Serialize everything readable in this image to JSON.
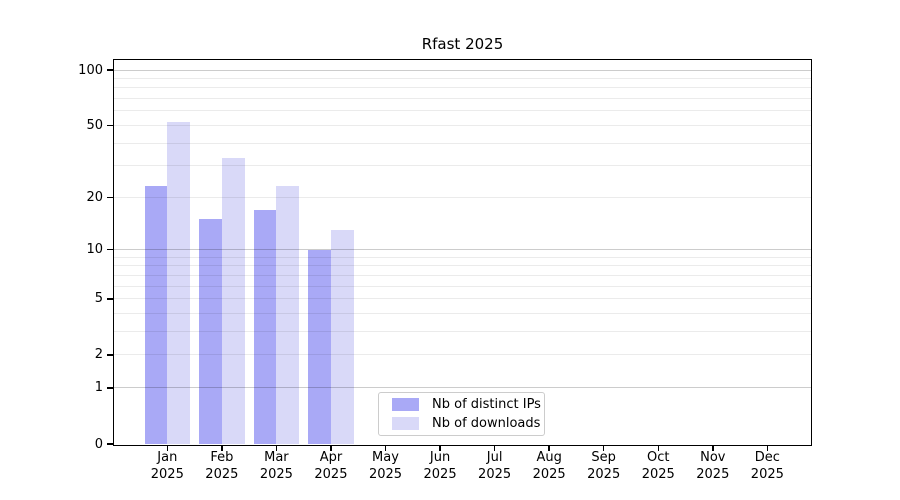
{
  "chart_data": {
    "type": "bar",
    "title": "Rfast 2025",
    "months": [
      "Jan",
      "Feb",
      "Mar",
      "Apr",
      "May",
      "Jun",
      "Jul",
      "Aug",
      "Sep",
      "Oct",
      "Nov",
      "Dec"
    ],
    "year_label": "2025",
    "series": [
      {
        "name": "Nb of distinct IPs",
        "color": "#a9a9f6",
        "values": [
          23,
          15,
          17,
          10,
          0,
          0,
          0,
          0,
          0,
          0,
          0,
          0
        ]
      },
      {
        "name": "Nb of downloads",
        "color": "#d9d9f8",
        "values": [
          52,
          33,
          23,
          13,
          0,
          0,
          0,
          0,
          0,
          0,
          0,
          0
        ]
      }
    ],
    "y_scale": "log1p",
    "y_tick_labels": [
      0,
      1,
      2,
      5,
      10,
      20,
      50,
      100
    ],
    "y_major_grid": [
      1,
      10,
      100
    ],
    "y_minor_grid": [
      2,
      3,
      4,
      5,
      6,
      7,
      8,
      9,
      20,
      30,
      40,
      50,
      60,
      70,
      80,
      90
    ],
    "ylim": [
      0,
      113
    ],
    "grid": true,
    "legend_position": "lower center",
    "frame_color": "#000000",
    "background_color": "#ffffff",
    "legend_border_color": "#cccccc"
  }
}
